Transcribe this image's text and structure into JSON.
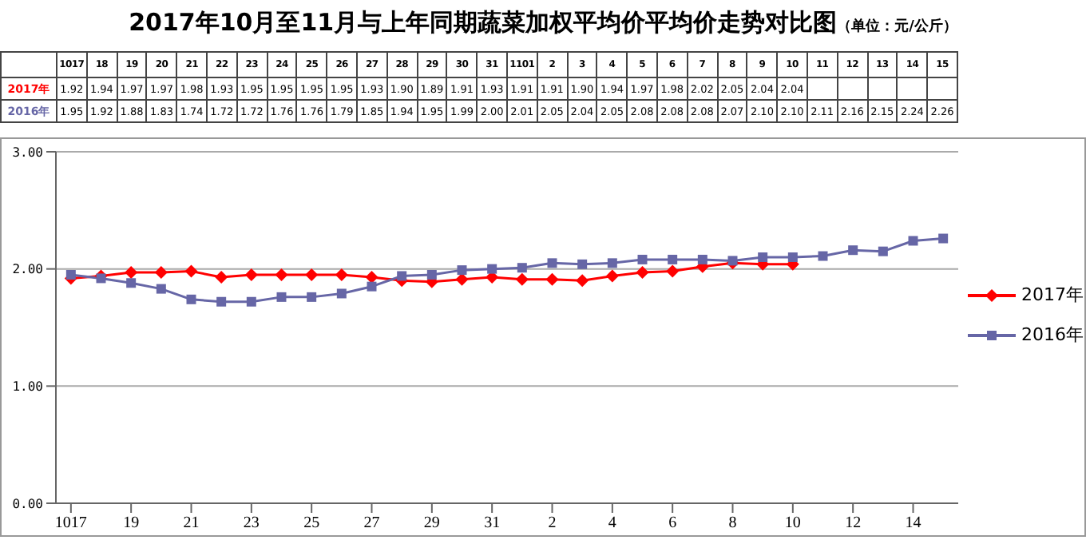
{
  "chart_data": {
    "type": "line",
    "title": "2017年10月至11月与上年同期蔬菜加权平均价平均价走势对比图",
    "subtitle": "（单位：元/公斤）",
    "categories": [
      "1017",
      "18",
      "19",
      "20",
      "21",
      "22",
      "23",
      "24",
      "25",
      "26",
      "27",
      "28",
      "29",
      "30",
      "31",
      "1101",
      "2",
      "3",
      "4",
      "5",
      "6",
      "7",
      "8",
      "9",
      "10",
      "11",
      "12",
      "13",
      "14",
      "15"
    ],
    "series": [
      {
        "name": "2017年",
        "color": "#ff0000",
        "marker": "diamond",
        "values": [
          1.92,
          1.94,
          1.97,
          1.97,
          1.98,
          1.93,
          1.95,
          1.95,
          1.95,
          1.95,
          1.93,
          1.9,
          1.89,
          1.91,
          1.93,
          1.91,
          1.91,
          1.9,
          1.94,
          1.97,
          1.98,
          2.02,
          2.05,
          2.04,
          2.04,
          null,
          null,
          null,
          null,
          null
        ],
        "value_labels": [
          "1.92",
          "1.94",
          "1.97",
          "1.97",
          "1.98",
          "1.93",
          "1.95",
          "1.95",
          "1.95",
          "1.95",
          "1.93",
          "1.90",
          "1.89",
          "1.91",
          "1.93",
          "1.91",
          "1.91",
          "1.90",
          "1.94",
          "1.97",
          "1.98",
          "2.02",
          "2.05",
          "2.04",
          "2.04",
          null,
          null,
          null,
          null,
          null
        ]
      },
      {
        "name": "2016年",
        "color": "#6666a6",
        "marker": "square",
        "values": [
          1.95,
          1.92,
          1.88,
          1.83,
          1.74,
          1.72,
          1.72,
          1.76,
          1.76,
          1.79,
          1.85,
          1.94,
          1.95,
          1.99,
          2.0,
          2.01,
          2.05,
          2.04,
          2.05,
          2.08,
          2.08,
          2.08,
          2.07,
          2.1,
          2.1,
          2.11,
          2.16,
          2.15,
          2.24,
          2.26
        ],
        "value_labels": [
          "1.95",
          "1.92",
          "1.88",
          "1.83",
          "1.74",
          "1.72",
          "1.72",
          "1.76",
          "1.76",
          "1.79",
          "1.85",
          "1.94",
          "1.95",
          "1.99",
          "2.00",
          "2.01",
          "2.05",
          "2.04",
          "2.05",
          "2.08",
          "2.08",
          "2.08",
          "2.07",
          "2.10",
          "2.10",
          "2.11",
          "2.16",
          "2.15",
          "2.24",
          "2.26"
        ]
      }
    ],
    "ylim": [
      0,
      3
    ],
    "yticks": [
      {
        "value": 0,
        "label": "0.00"
      },
      {
        "value": 1,
        "label": "1.00"
      },
      {
        "value": 2,
        "label": "2.00"
      },
      {
        "value": 3,
        "label": "3.00"
      }
    ],
    "grid": "y",
    "legend": "right",
    "line_style": "solid"
  }
}
